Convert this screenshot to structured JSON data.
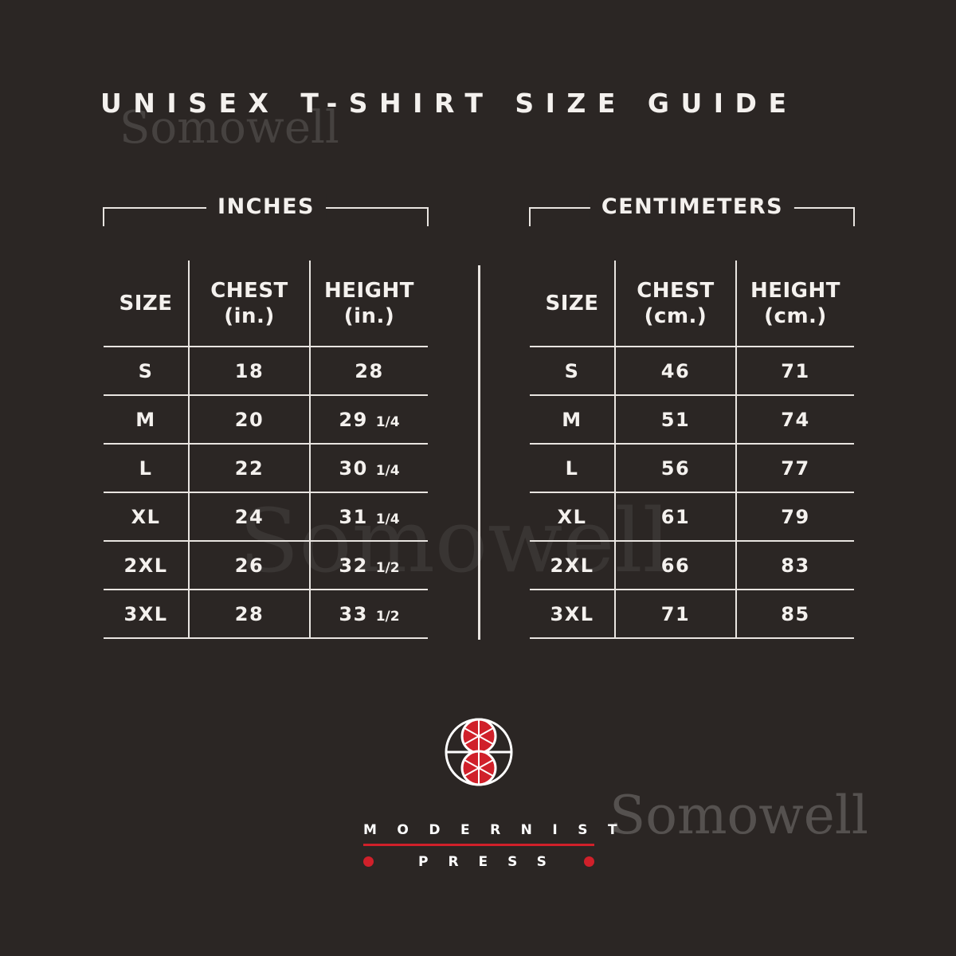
{
  "title": "UNISEX T-SHIRT SIZE GUIDE",
  "watermark": "Somowell",
  "accent": "#d0202a",
  "inches": {
    "label": "INCHES",
    "headers": [
      "SIZE",
      "CHEST\n(in.)",
      "HEIGHT\n(in.)"
    ],
    "rows": [
      [
        "S",
        "18",
        "28"
      ],
      [
        "M",
        "20",
        "29 1/4"
      ],
      [
        "L",
        "22",
        "30 1/4"
      ],
      [
        "XL",
        "24",
        "31 1/4"
      ],
      [
        "2XL",
        "26",
        "32 1/2"
      ],
      [
        "3XL",
        "28",
        "33 1/2"
      ]
    ]
  },
  "centimeters": {
    "label": "CENTIMETERS",
    "headers": [
      "SIZE",
      "CHEST\n(cm.)",
      "HEIGHT\n(cm.)"
    ],
    "rows": [
      [
        "S",
        "46",
        "71"
      ],
      [
        "M",
        "51",
        "74"
      ],
      [
        "L",
        "56",
        "77"
      ],
      [
        "XL",
        "61",
        "79"
      ],
      [
        "2XL",
        "66",
        "83"
      ],
      [
        "3XL",
        "71",
        "85"
      ]
    ]
  },
  "brand": {
    "line1": "MODERNIST",
    "line2": "PRESS",
    "logo_icon": "double-circle-wheel-logo"
  }
}
